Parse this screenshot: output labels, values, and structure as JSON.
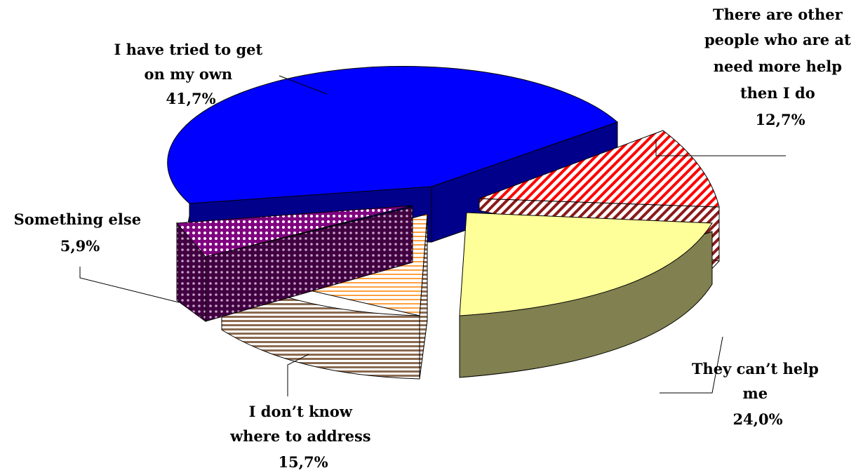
{
  "chart_data": {
    "type": "pie",
    "style": "3d-exploded",
    "slices": [
      {
        "label": "I have tried to get on my own",
        "value": 41.7,
        "value_label": "41,7%",
        "color": "#0000FF",
        "side_color": "#00008B",
        "pattern": "solid"
      },
      {
        "label": "There are other people who are at need more help then I do",
        "value": 12.7,
        "value_label": "12,7%",
        "color": "#FF0000",
        "side_color": "#8B1A1A",
        "pattern": "diagonal-stripes"
      },
      {
        "label": "They can't help me",
        "value": 24.0,
        "value_label": "24,0%",
        "color": "#FFFF99",
        "side_color": "#808050",
        "pattern": "solid"
      },
      {
        "label": "I don't know where to address",
        "value": 15.7,
        "value_label": "15,7%",
        "color": "#FFA040",
        "side_color": "#8B6A50",
        "pattern": "horizontal-stripes"
      },
      {
        "label": "Something else",
        "value": 5.9,
        "value_label": "5,9%",
        "color": "#800080",
        "side_color": "#5A0050",
        "pattern": "dots"
      }
    ],
    "labels": [
      {
        "lines": [
          "I have tried to get",
          "on my own",
          "41,7%"
        ]
      },
      {
        "lines": [
          "There are other",
          "people who are at",
          "need more help",
          "then I do",
          "12,7%"
        ]
      },
      {
        "lines": [
          "They can’t help",
          "me",
          "24,0%"
        ]
      },
      {
        "lines": [
          "I don’t know",
          "where to address",
          "15,7%"
        ]
      },
      {
        "lines": [
          "Something else",
          "5,9%"
        ]
      }
    ]
  }
}
